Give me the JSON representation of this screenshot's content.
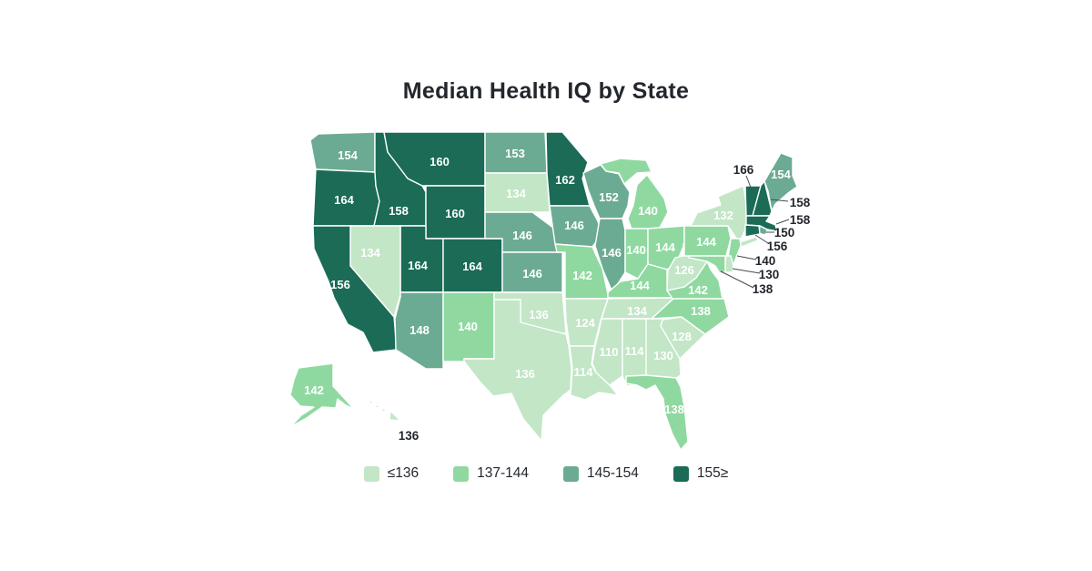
{
  "title": "Median Health IQ by State",
  "legend": {
    "items": [
      {
        "label": "≤136",
        "color": "#c2e6c6",
        "max": 136
      },
      {
        "label": "137-144",
        "color": "#8fd9a0",
        "max": 144
      },
      {
        "label": "145-154",
        "color": "#6cab93",
        "max": 154
      },
      {
        "label": "155≥",
        "color": "#1b6b56",
        "max": 999
      }
    ]
  },
  "colors": {
    "title_text": "#23272d",
    "state_border": "#ffffff",
    "label_on_state": "#ffffff",
    "label_outside": "#23272d",
    "leader_line": "#474c52",
    "background": "#ffffff"
  },
  "chart_data": {
    "type": "choropleth",
    "title": "Median Health IQ by State",
    "metric": "Median Health IQ",
    "region": "United States",
    "legend_position": "bottom",
    "bands": [
      "≤136",
      "137-144",
      "145-154",
      "155≥"
    ],
    "states": [
      {
        "code": "WA",
        "name": "Washington",
        "value": 154
      },
      {
        "code": "OR",
        "name": "Oregon",
        "value": 164
      },
      {
        "code": "CA",
        "name": "California",
        "value": 156
      },
      {
        "code": "NV",
        "name": "Nevada",
        "value": 134
      },
      {
        "code": "ID",
        "name": "Idaho",
        "value": 158
      },
      {
        "code": "MT",
        "name": "Montana",
        "value": 160
      },
      {
        "code": "WY",
        "name": "Wyoming",
        "value": 160
      },
      {
        "code": "UT",
        "name": "Utah",
        "value": 164
      },
      {
        "code": "CO",
        "name": "Colorado",
        "value": 164
      },
      {
        "code": "AZ",
        "name": "Arizona",
        "value": 148
      },
      {
        "code": "NM",
        "name": "New Mexico",
        "value": 140
      },
      {
        "code": "ND",
        "name": "North Dakota",
        "value": 153
      },
      {
        "code": "SD",
        "name": "South Dakota",
        "value": 134
      },
      {
        "code": "NE",
        "name": "Nebraska",
        "value": 146
      },
      {
        "code": "KS",
        "name": "Kansas",
        "value": 146
      },
      {
        "code": "OK",
        "name": "Oklahoma",
        "value": 136
      },
      {
        "code": "TX",
        "name": "Texas",
        "value": 136
      },
      {
        "code": "MN",
        "name": "Minnesota",
        "value": 162
      },
      {
        "code": "IA",
        "name": "Iowa",
        "value": 146
      },
      {
        "code": "MO",
        "name": "Missouri",
        "value": 142
      },
      {
        "code": "AR",
        "name": "Arkansas",
        "value": 124
      },
      {
        "code": "LA",
        "name": "Louisiana",
        "value": 114
      },
      {
        "code": "WI",
        "name": "Wisconsin",
        "value": 152
      },
      {
        "code": "IL",
        "name": "Illinois",
        "value": 146
      },
      {
        "code": "MI",
        "name": "Michigan",
        "value": 140
      },
      {
        "code": "IN",
        "name": "Indiana",
        "value": 140
      },
      {
        "code": "OH",
        "name": "Ohio",
        "value": 144
      },
      {
        "code": "KY",
        "name": "Kentucky",
        "value": 144
      },
      {
        "code": "TN",
        "name": "Tennessee",
        "value": 134
      },
      {
        "code": "MS",
        "name": "Mississippi",
        "value": 110
      },
      {
        "code": "AL",
        "name": "Alabama",
        "value": 114
      },
      {
        "code": "GA",
        "name": "Georgia",
        "value": 130
      },
      {
        "code": "FL",
        "name": "Florida",
        "value": 138
      },
      {
        "code": "SC",
        "name": "South Carolina",
        "value": 128
      },
      {
        "code": "NC",
        "name": "North Carolina",
        "value": 138
      },
      {
        "code": "VA",
        "name": "Virginia",
        "value": 142
      },
      {
        "code": "WV",
        "name": "West Virginia",
        "value": 126
      },
      {
        "code": "PA",
        "name": "Pennsylvania",
        "value": 144
      },
      {
        "code": "NY",
        "name": "New York",
        "value": 132
      },
      {
        "code": "VT",
        "name": "Vermont",
        "value": 166
      },
      {
        "code": "NH",
        "name": "New Hampshire",
        "value": 158
      },
      {
        "code": "ME",
        "name": "Maine",
        "value": 154
      },
      {
        "code": "MA",
        "name": "Massachusetts",
        "value": 158
      },
      {
        "code": "RI",
        "name": "Rhode Island",
        "value": 150
      },
      {
        "code": "CT",
        "name": "Connecticut",
        "value": 156
      },
      {
        "code": "NJ",
        "name": "New Jersey",
        "value": 140
      },
      {
        "code": "DE",
        "name": "Delaware",
        "value": 130
      },
      {
        "code": "MD",
        "name": "Maryland",
        "value": 138
      },
      {
        "code": "AK",
        "name": "Alaska",
        "value": 142
      },
      {
        "code": "HI",
        "name": "Hawaii",
        "value": 136
      }
    ]
  }
}
